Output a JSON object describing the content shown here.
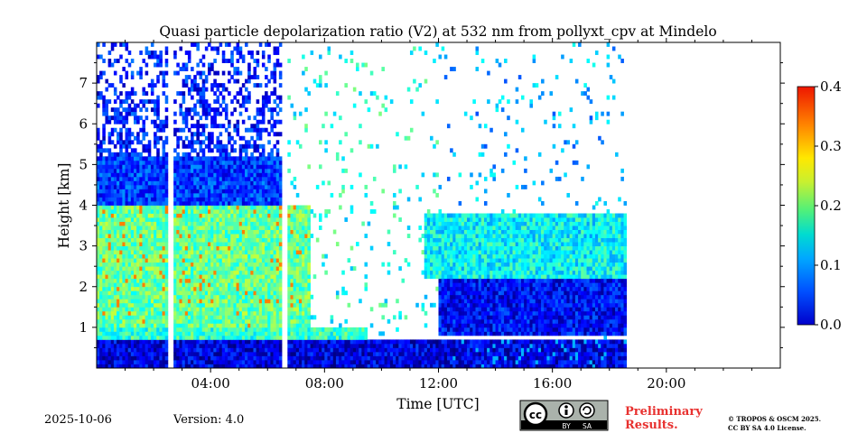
{
  "chart_data": {
    "type": "heatmap",
    "title": "Quasi particle depolarization ratio (V2) at 532 nm from pollyxt_cpv at Mindelo",
    "xlabel": "Time [UTC]",
    "ylabel": "Height [km]",
    "x_unit": "hours UTC",
    "xlim": [
      0,
      24
    ],
    "ylim": [
      0,
      8
    ],
    "x_tick_values": [
      4,
      8,
      12,
      16,
      20
    ],
    "x_tick_labels": [
      "04:00",
      "08:00",
      "12:00",
      "16:00",
      "20:00"
    ],
    "y_tick_values": [
      1,
      2,
      3,
      4,
      5,
      6,
      7
    ],
    "y_tick_labels": [
      "1",
      "2",
      "3",
      "4",
      "5",
      "6",
      "7"
    ],
    "data_end_hour": 18.6,
    "gaps_hours": [
      [
        2.5,
        2.7
      ],
      [
        6.5,
        6.7
      ]
    ],
    "colorbar": {
      "vmin": 0.0,
      "vmax": 0.4,
      "tick_values": [
        0.0,
        0.1,
        0.2,
        0.3,
        0.4
      ],
      "tick_labels": [
        "0.0",
        "0.1",
        "0.2",
        "0.3",
        "0.4"
      ],
      "colormap": "jet"
    },
    "layers": [
      {
        "name": "near-surface layer",
        "t_start": 0,
        "t_end": 18.6,
        "h_bottom": 0.0,
        "h_top": 0.7,
        "value": 0.04
      },
      {
        "name": "thin lower band",
        "t_start": 0,
        "t_end": 9.5,
        "h_bottom": 0.7,
        "h_top": 1.0,
        "value": 0.17
      },
      {
        "name": "dust layer",
        "t_start": 0,
        "t_end": 7.5,
        "h_bottom": 1.0,
        "h_top": 4.0,
        "value": 0.19
      },
      {
        "name": "dust layer top",
        "t_start": 0,
        "t_end": 6.7,
        "h_bottom": 4.0,
        "h_top": 5.2,
        "value": 0.07
      },
      {
        "name": "afternoon aerosol layer",
        "t_start": 12,
        "t_end": 18.6,
        "h_bottom": 0.8,
        "h_top": 2.2,
        "value": 0.05
      },
      {
        "name": "afternoon elevated layer",
        "t_start": 11.5,
        "t_end": 18.6,
        "h_bottom": 2.2,
        "h_top": 3.8,
        "value": 0.15
      }
    ]
  },
  "footer": {
    "date": "2025-10-06",
    "version": "Version: 4.0",
    "license_badge": {
      "left": "cc",
      "by": "BY",
      "sa": "SA"
    },
    "preliminary": [
      "Preliminary",
      "Results."
    ],
    "copyright": [
      "© TROPOS & OSCM 2025.",
      "CC BY SA 4.0 License."
    ]
  },
  "colors": {
    "jet": [
      "#00007f",
      "#0000ff",
      "#007fff",
      "#00ffff",
      "#7fff7f",
      "#ffff00",
      "#ff7f00",
      "#ff0000",
      "#7f0000"
    ],
    "preliminary": "#e8312f"
  }
}
